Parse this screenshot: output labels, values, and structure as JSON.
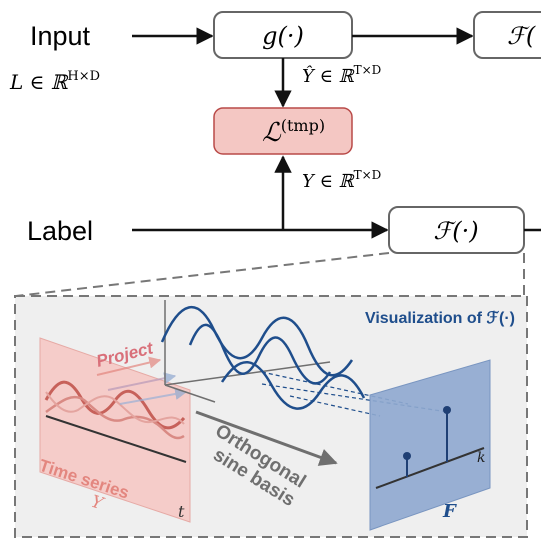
{
  "flow": {
    "input_label": "Input",
    "input_math": "L ∈ ℝ",
    "input_sup": "H×D",
    "label_label": "Label",
    "g_box": "g(·)",
    "f_box_top": "ℱ(",
    "f_box_bottom": "ℱ(·)",
    "loss_main": "ℒ",
    "loss_sup": "(tmp)",
    "yhat_math": "Ŷ ∈ ℝ",
    "yhat_sup": "T×D",
    "y_math": "Y ∈ ℝ",
    "y_sup": "T×D"
  },
  "viz": {
    "title": "Visualization of ℱ(·)",
    "project_label": "Project",
    "time_series_label": "Time series",
    "time_series_symbol": "Y",
    "t_axis": "t",
    "basis_line1": "Orthogonal",
    "basis_line2": "sine basis",
    "k_axis": "k",
    "F_symbol": "F"
  },
  "colors": {
    "loss_fill": "#f4c7c3",
    "loss_stroke": "#b94a48",
    "panel_fill": "#efefef",
    "red_panel": "#f6cbc8",
    "red_text": "#e3867f",
    "blue_panel": "#8fa9d0",
    "blue_text": "#1f4e8c",
    "wave_blue": "#1f4e8c",
    "gray_axis": "#6f6f6f"
  }
}
